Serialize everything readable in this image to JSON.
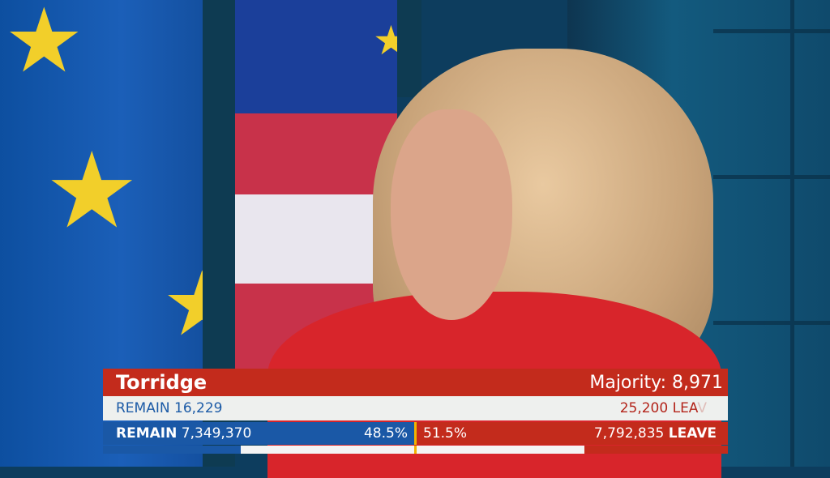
{
  "constituency": {
    "name": "Torridge",
    "majority_label": "Majority:",
    "majority": "8,971",
    "remain_label": "REMAIN",
    "remain_votes": "16,229",
    "leave_votes": "25,200",
    "leave_label_visible": "LEA",
    "leave_label_faded": "V"
  },
  "national": {
    "remain_label": "REMAIN",
    "remain_votes": "7,349,370",
    "remain_pct": "48.5%",
    "leave_pct": "51.5%",
    "leave_votes": "7,792,835",
    "leave_label": "LEAVE",
    "remain_share": 48.5,
    "leave_share": 51.5
  },
  "colors": {
    "leave": "#c32b1c",
    "remain": "#1a58a6",
    "divider": "#f2b400"
  }
}
